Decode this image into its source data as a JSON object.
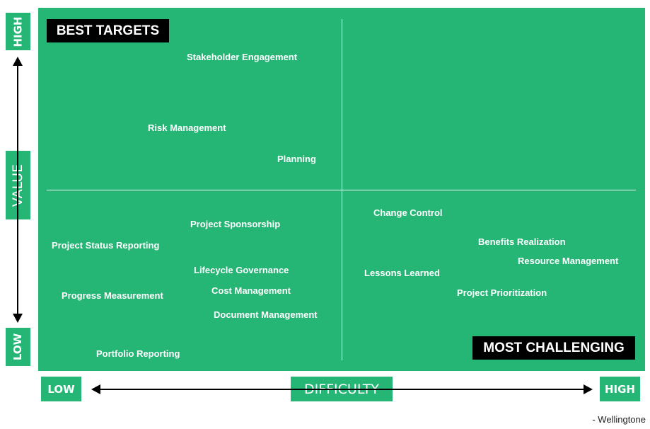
{
  "y_axis": {
    "high": "HIGH",
    "label": "VALUE",
    "low": "LOW"
  },
  "x_axis": {
    "low": "LOW",
    "label": "DIFFICULTY",
    "high": "HIGH"
  },
  "quadrant_labels": {
    "best": "BEST TARGETS",
    "challenging": "MOST CHALLENGING"
  },
  "items": [
    "Stakeholder Engagement",
    "Risk Management",
    "Planning",
    "Project Sponsorship",
    "Project Status Reporting",
    "Lifecycle Governance",
    "Progress Measurement",
    "Cost Management",
    "Document Management",
    "Portfolio Reporting",
    "Change Control",
    "Benefits Realization",
    "Resource Management",
    "Lessons Learned",
    "Project Prioritization"
  ],
  "credit": "- Wellingtone",
  "colors": {
    "green": "#25b575",
    "badge": "#000000",
    "text": "#ffffff"
  }
}
